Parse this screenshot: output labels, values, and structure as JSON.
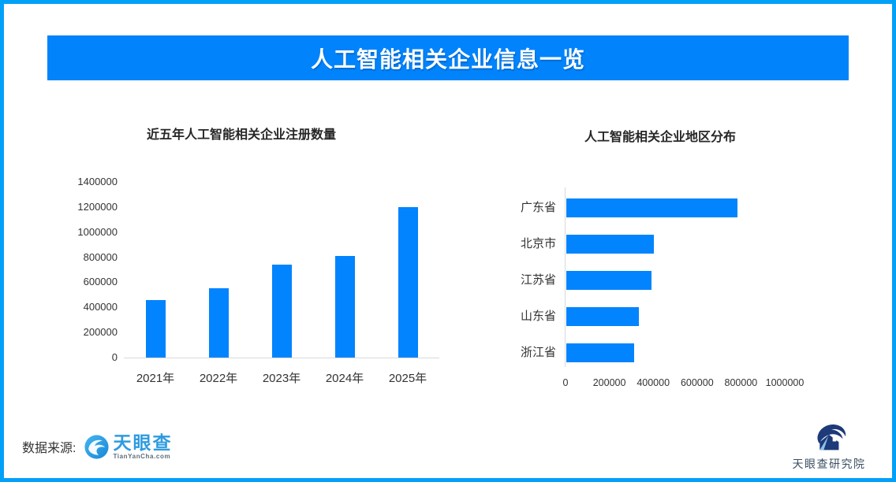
{
  "banner": {
    "title": "人工智能相关企业信息一览"
  },
  "chart_data": [
    {
      "type": "bar",
      "orientation": "vertical",
      "title": "近五年人工智能相关企业注册数量",
      "categories": [
        "2021年",
        "2022年",
        "2023年",
        "2024年",
        "2025年"
      ],
      "values": [
        460000,
        550000,
        740000,
        810000,
        1200000
      ],
      "xlabel": "",
      "ylabel": "",
      "ylim": [
        0,
        1400000
      ],
      "yticks": [
        0,
        200000,
        400000,
        600000,
        800000,
        1000000,
        1200000,
        1400000
      ],
      "grid": false,
      "legend": "none",
      "bar_color": "#0184fd"
    },
    {
      "type": "bar",
      "orientation": "horizontal",
      "title": "人工智能相关企业地区分布",
      "categories": [
        "广东省",
        "北京市",
        "江苏省",
        "山东省",
        "浙江省"
      ],
      "values": [
        780000,
        400000,
        390000,
        330000,
        310000
      ],
      "xlabel": "",
      "ylabel": "",
      "xlim": [
        0,
        1000000
      ],
      "xticks": [
        0,
        200000,
        400000,
        600000,
        800000,
        1000000
      ],
      "grid": false,
      "legend": "none",
      "bar_color": "#0184fd"
    }
  ],
  "footer": {
    "source_label": "数据来源:",
    "tianyancha_name": "天眼查",
    "tianyancha_domain": "TianYanCha.com",
    "research_institute": "天眼查研究院"
  },
  "colors": {
    "frame_border": "#01a1f8",
    "banner_background": "#0183fb",
    "bar_fill": "#0184fd",
    "axis_line": "#d9d9d9",
    "text_dark": "#333333",
    "tianyancha_blue": "#2e9be0",
    "research_navy": "#1d3a79"
  }
}
